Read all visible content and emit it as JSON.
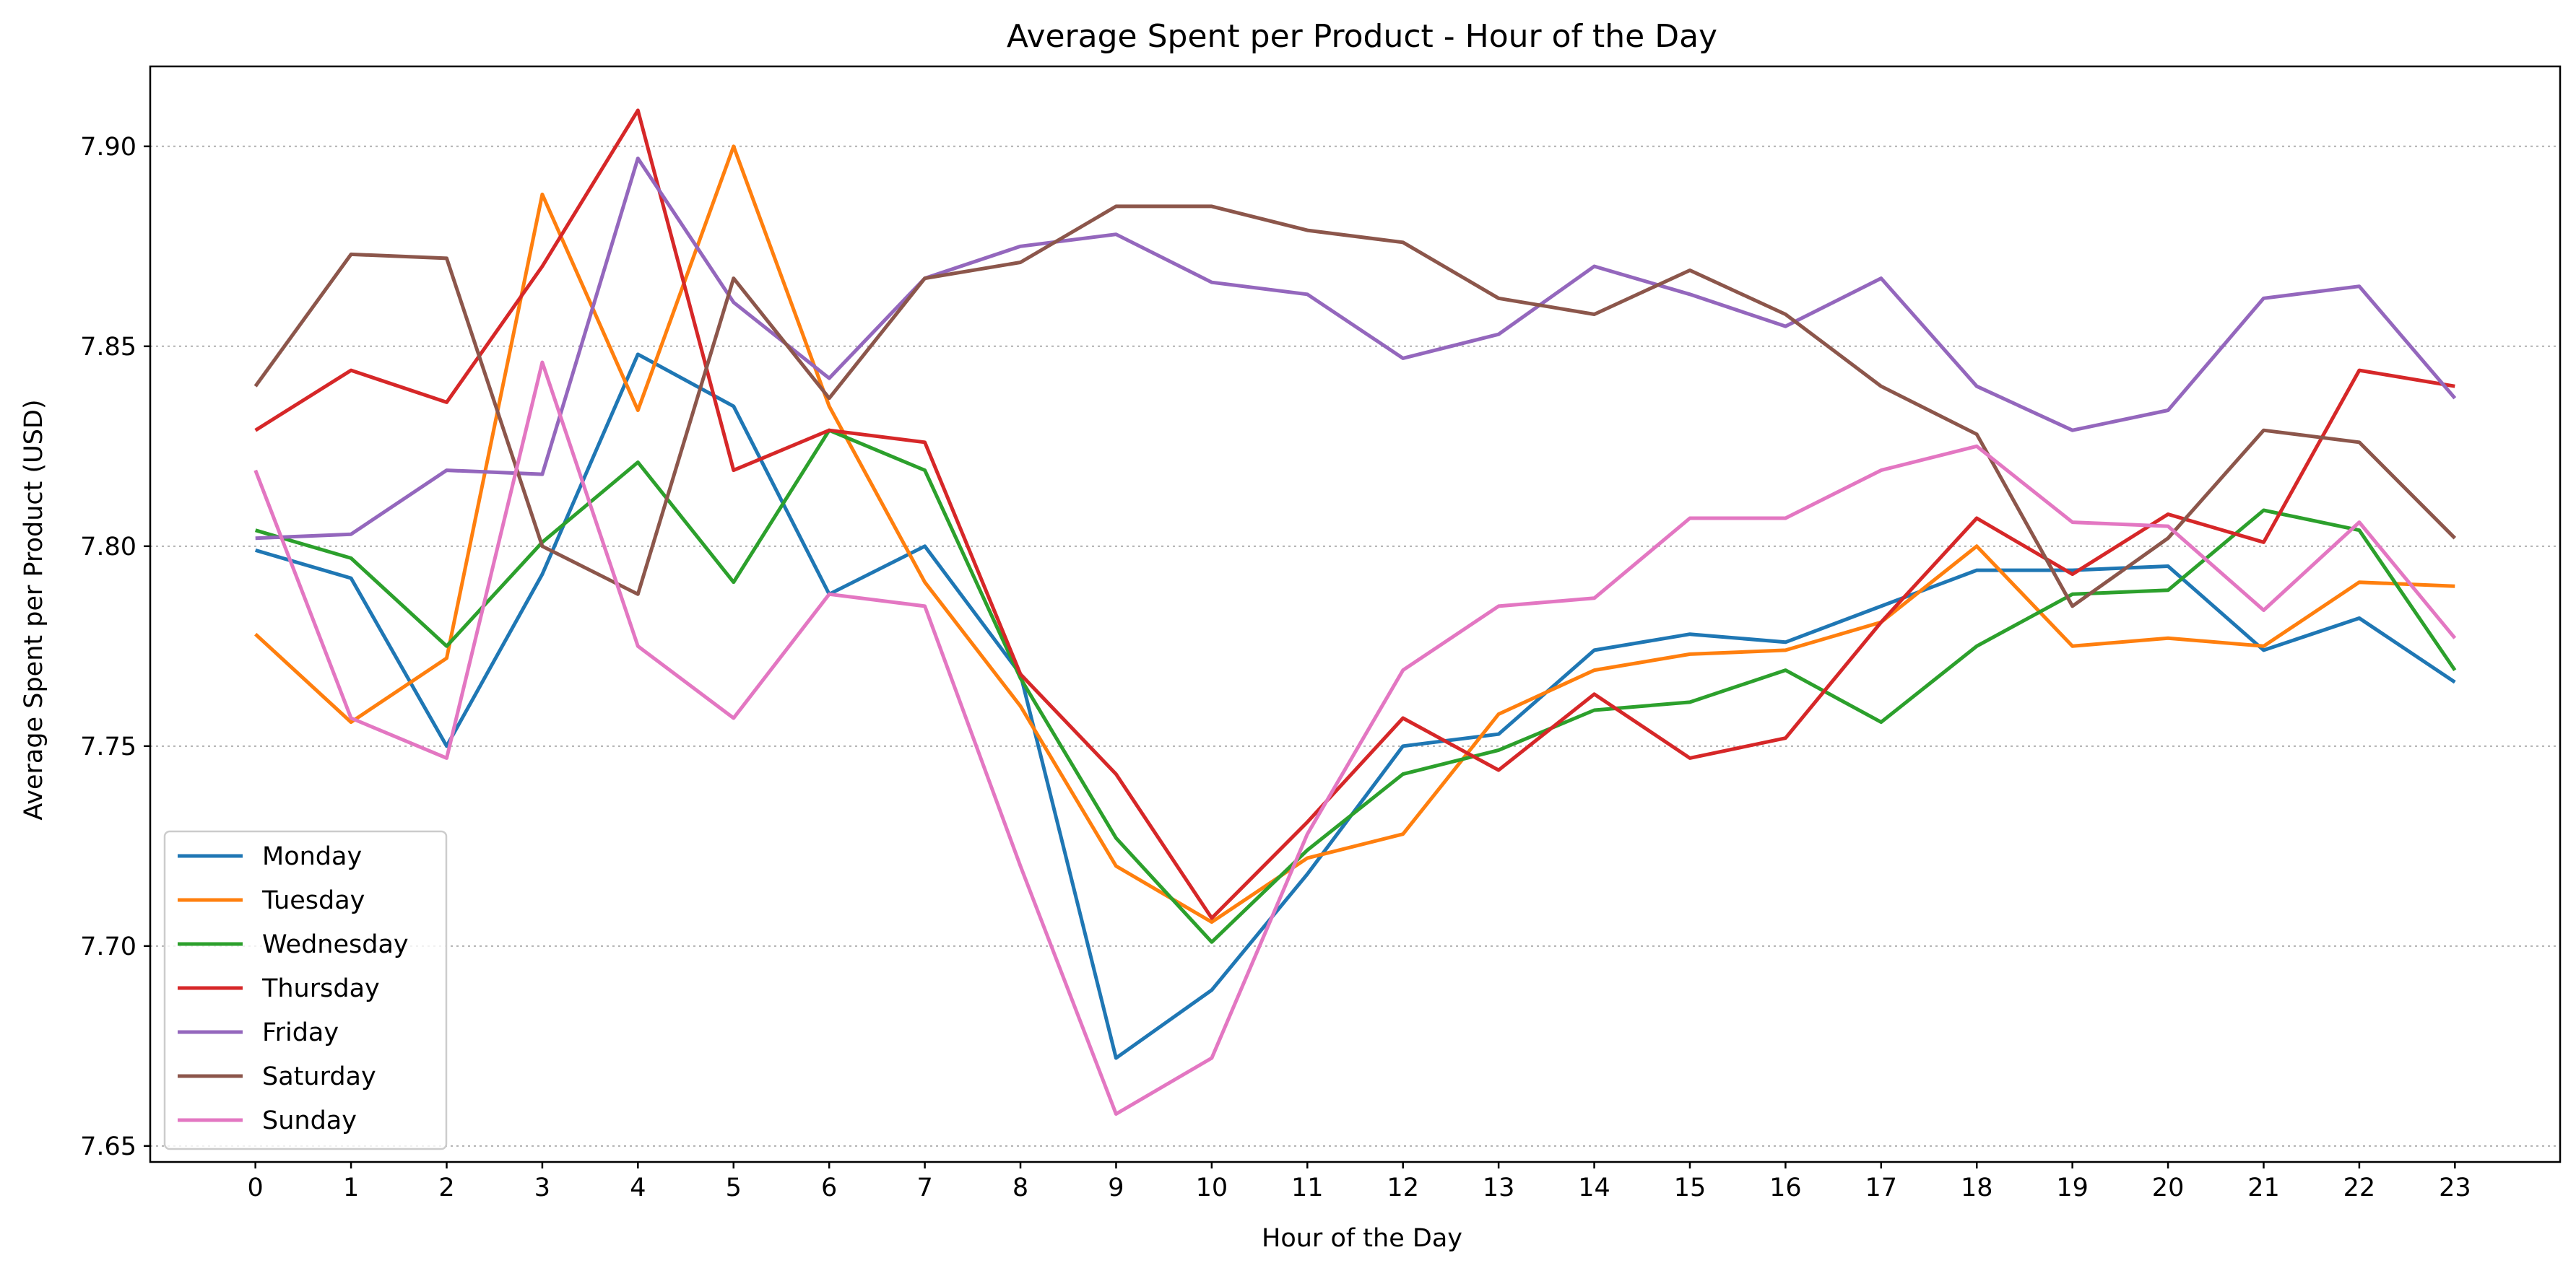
{
  "chart_data": {
    "type": "line",
    "title": "Average Spent per Product - Hour of the Day",
    "xlabel": "Hour of the Day",
    "ylabel": "Average Spent per Product (USD)",
    "x": [
      0,
      1,
      2,
      3,
      4,
      5,
      6,
      7,
      8,
      9,
      10,
      11,
      12,
      13,
      14,
      15,
      16,
      17,
      18,
      19,
      20,
      21,
      22,
      23
    ],
    "xlim": [
      -1.1,
      24.1
    ],
    "ylim": [
      7.646,
      7.92
    ],
    "yticks": [
      7.65,
      7.7,
      7.75,
      7.8,
      7.85,
      7.9
    ],
    "ytick_labels": [
      "7.65",
      "7.70",
      "7.75",
      "7.80",
      "7.85",
      "7.90"
    ],
    "grid": "y-dotted",
    "legend": "lower-left",
    "series": [
      {
        "name": "Monday",
        "color": "#1f77b4",
        "values": [
          7.799,
          7.792,
          7.75,
          7.793,
          7.848,
          7.835,
          7.788,
          7.8,
          7.768,
          7.672,
          7.689,
          7.718,
          7.75,
          7.753,
          7.774,
          7.778,
          7.776,
          7.785,
          7.794,
          7.794,
          7.795,
          7.774,
          7.782,
          7.766
        ]
      },
      {
        "name": "Tuesday",
        "color": "#ff7f0e",
        "values": [
          7.778,
          7.756,
          7.772,
          7.888,
          7.834,
          7.9,
          7.835,
          7.791,
          7.76,
          7.72,
          7.706,
          7.722,
          7.728,
          7.758,
          7.769,
          7.773,
          7.774,
          7.781,
          7.8,
          7.775,
          7.777,
          7.775,
          7.791,
          7.79
        ]
      },
      {
        "name": "Wednesday",
        "color": "#2ca02c",
        "values": [
          7.804,
          7.797,
          7.775,
          7.801,
          7.821,
          7.791,
          7.829,
          7.819,
          7.767,
          7.727,
          7.701,
          7.724,
          7.743,
          7.749,
          7.759,
          7.761,
          7.769,
          7.756,
          7.775,
          7.788,
          7.789,
          7.809,
          7.804,
          7.769
        ]
      },
      {
        "name": "Thursday",
        "color": "#d62728",
        "values": [
          7.829,
          7.844,
          7.836,
          7.87,
          7.909,
          7.819,
          7.829,
          7.826,
          7.768,
          7.743,
          7.707,
          7.731,
          7.757,
          7.744,
          7.763,
          7.747,
          7.752,
          7.781,
          7.807,
          7.793,
          7.808,
          7.801,
          7.844,
          7.84
        ]
      },
      {
        "name": "Friday",
        "color": "#9467bd",
        "values": [
          7.802,
          7.803,
          7.819,
          7.818,
          7.897,
          7.861,
          7.842,
          7.867,
          7.875,
          7.878,
          7.866,
          7.863,
          7.847,
          7.853,
          7.87,
          7.863,
          7.855,
          7.867,
          7.84,
          7.829,
          7.834,
          7.862,
          7.865,
          7.837
        ]
      },
      {
        "name": "Saturday",
        "color": "#8c564b",
        "values": [
          7.84,
          7.873,
          7.872,
          7.8,
          7.788,
          7.867,
          7.837,
          7.867,
          7.871,
          7.885,
          7.885,
          7.879,
          7.876,
          7.862,
          7.858,
          7.869,
          7.858,
          7.84,
          7.828,
          7.785,
          7.802,
          7.829,
          7.826,
          7.802
        ]
      },
      {
        "name": "Sunday",
        "color": "#e377c2",
        "values": [
          7.819,
          7.757,
          7.747,
          7.846,
          7.775,
          7.757,
          7.788,
          7.785,
          7.72,
          7.658,
          7.672,
          7.728,
          7.769,
          7.785,
          7.787,
          7.807,
          7.807,
          7.819,
          7.825,
          7.806,
          7.805,
          7.784,
          7.806,
          7.777
        ]
      }
    ]
  }
}
